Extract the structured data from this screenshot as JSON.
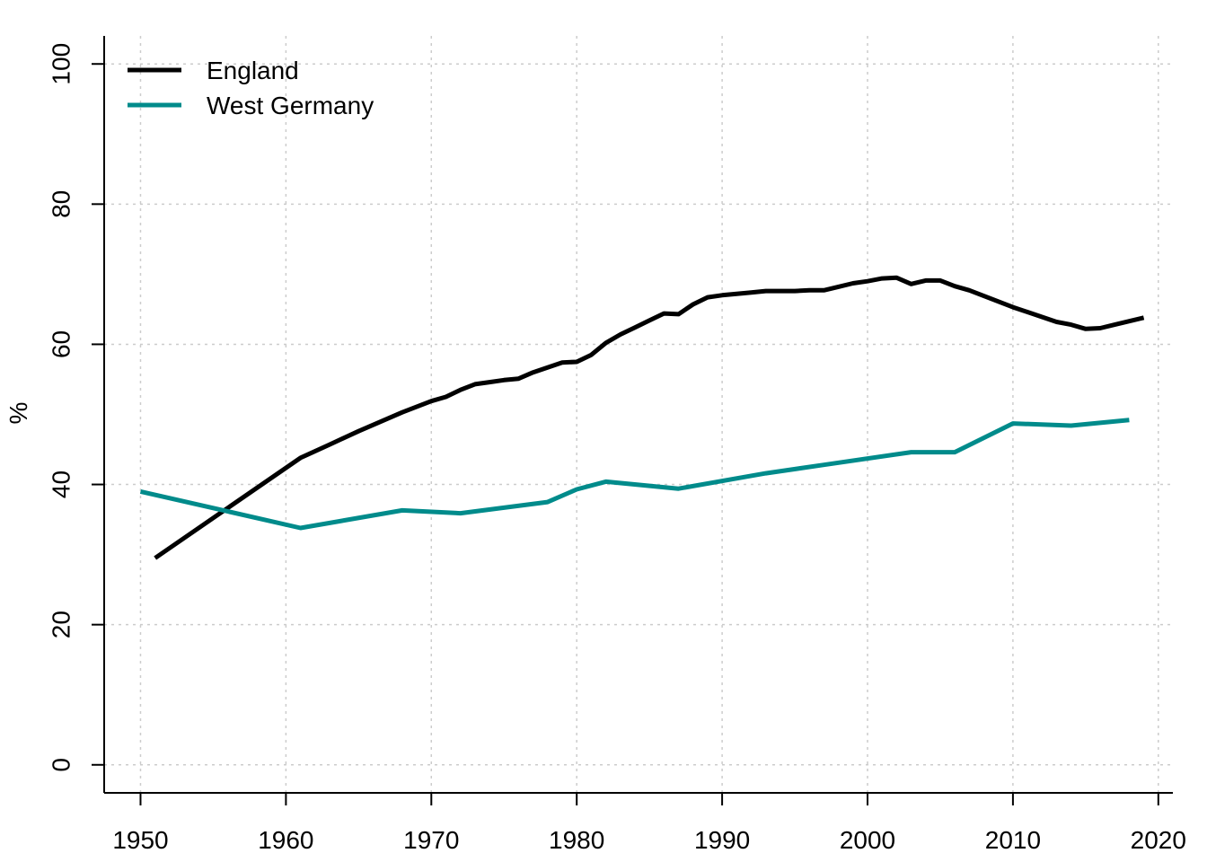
{
  "chart_data": {
    "type": "line",
    "title": "",
    "xlabel": "",
    "ylabel": "%",
    "xlim": [
      1947.5,
      2021
    ],
    "ylim": [
      -4,
      104
    ],
    "xticks": [
      "1950",
      "1960",
      "1970",
      "1980",
      "1990",
      "2000",
      "2010",
      "2020"
    ],
    "yticks": [
      "0",
      "20",
      "40",
      "60",
      "80",
      "100"
    ],
    "grid": true,
    "legend_position": "top-left",
    "series": [
      {
        "name": "England",
        "color": "#000000",
        "x": [
          1951,
          1961,
          1963,
          1965,
          1967,
          1968,
          1970,
          1971,
          1972,
          1973,
          1974,
          1975,
          1976,
          1977,
          1978,
          1979,
          1980,
          1981,
          1982,
          1983,
          1984,
          1985,
          1986,
          1987,
          1988,
          1989,
          1990,
          1991,
          1992,
          1993,
          1994,
          1995,
          1996,
          1997,
          1998,
          1999,
          2000,
          2001,
          2002,
          2003,
          2004,
          2005,
          2006,
          2007,
          2008,
          2009,
          2010,
          2011,
          2012,
          2013,
          2014,
          2015,
          2016,
          2017,
          2018,
          2019
        ],
        "values": [
          29.5,
          43.8,
          45.7,
          47.6,
          49.4,
          50.3,
          51.9,
          52.5,
          53.5,
          54.3,
          54.6,
          54.9,
          55.1,
          56.0,
          56.7,
          57.4,
          57.5,
          58.5,
          60.2,
          61.4,
          62.4,
          63.4,
          64.4,
          64.3,
          65.7,
          66.7,
          67.0,
          67.2,
          67.4,
          67.6,
          67.6,
          67.6,
          67.7,
          67.7,
          68.2,
          68.7,
          69.0,
          69.4,
          69.5,
          68.6,
          69.1,
          69.1,
          68.3,
          67.7,
          66.9,
          66.1,
          65.3,
          64.6,
          63.9,
          63.2,
          62.8,
          62.2,
          62.3,
          62.8,
          63.3,
          63.8
        ]
      },
      {
        "name": "West Germany",
        "color": "#008b8b",
        "x": [
          1950,
          1961,
          1968,
          1972,
          1978,
          1980,
          1982,
          1987,
          1993,
          1997,
          2003,
          2006,
          2010,
          2014,
          2018
        ],
        "values": [
          39.0,
          33.8,
          36.3,
          35.9,
          37.5,
          39.3,
          40.4,
          39.4,
          41.6,
          42.8,
          44.6,
          44.6,
          48.7,
          48.4,
          49.2
        ]
      }
    ]
  }
}
